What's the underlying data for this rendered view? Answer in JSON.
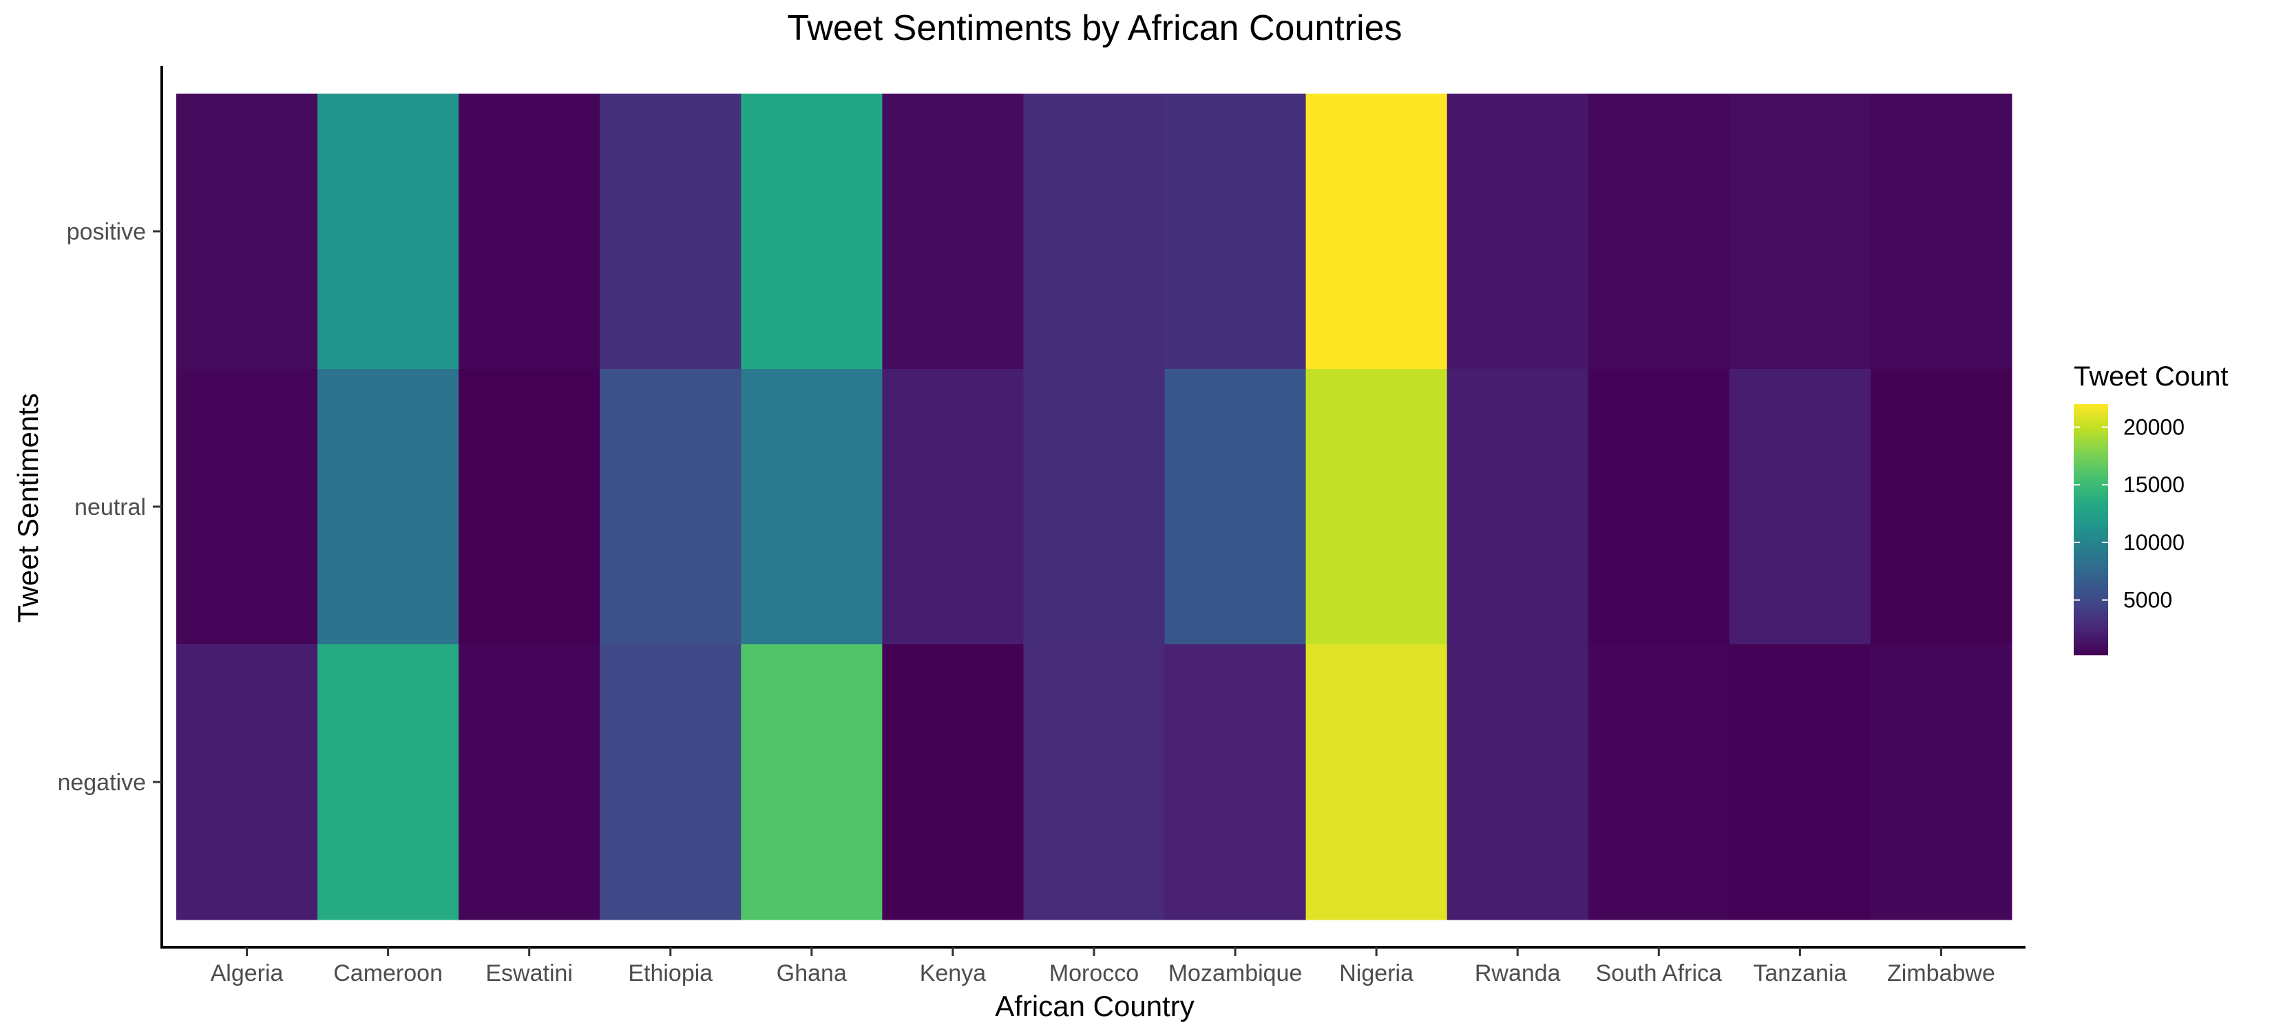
{
  "chart_data": {
    "type": "heatmap",
    "title": "Tweet Sentiments by African Countries",
    "xlabel": "African Country",
    "ylabel": "Tweet Sentiments",
    "x_categories": [
      "Algeria",
      "Cameroon",
      "Eswatini",
      "Ethiopia",
      "Ghana",
      "Kenya",
      "Morocco",
      "Mozambique",
      "Nigeria",
      "Rwanda",
      "South Africa",
      "Tanzania",
      "Zimbabwe"
    ],
    "y_categories": [
      "positive",
      "neutral",
      "negative"
    ],
    "values": [
      [
        800,
        11500,
        500,
        3200,
        13200,
        800,
        3000,
        3200,
        22000,
        1500,
        700,
        900,
        700
      ],
      [
        500,
        8500,
        200,
        5500,
        9000,
        2000,
        3000,
        6000,
        20000,
        2000,
        300,
        2000,
        250
      ],
      [
        2000,
        13500,
        500,
        5000,
        16000,
        250,
        2800,
        2200,
        21000,
        2000,
        500,
        300,
        600
      ]
    ],
    "legend": {
      "title": "Tweet Count",
      "position": "right",
      "ticks": [
        5000,
        10000,
        15000,
        20000
      ],
      "range": [
        200,
        22000
      ],
      "colorscale": "viridis"
    },
    "grid": false
  }
}
